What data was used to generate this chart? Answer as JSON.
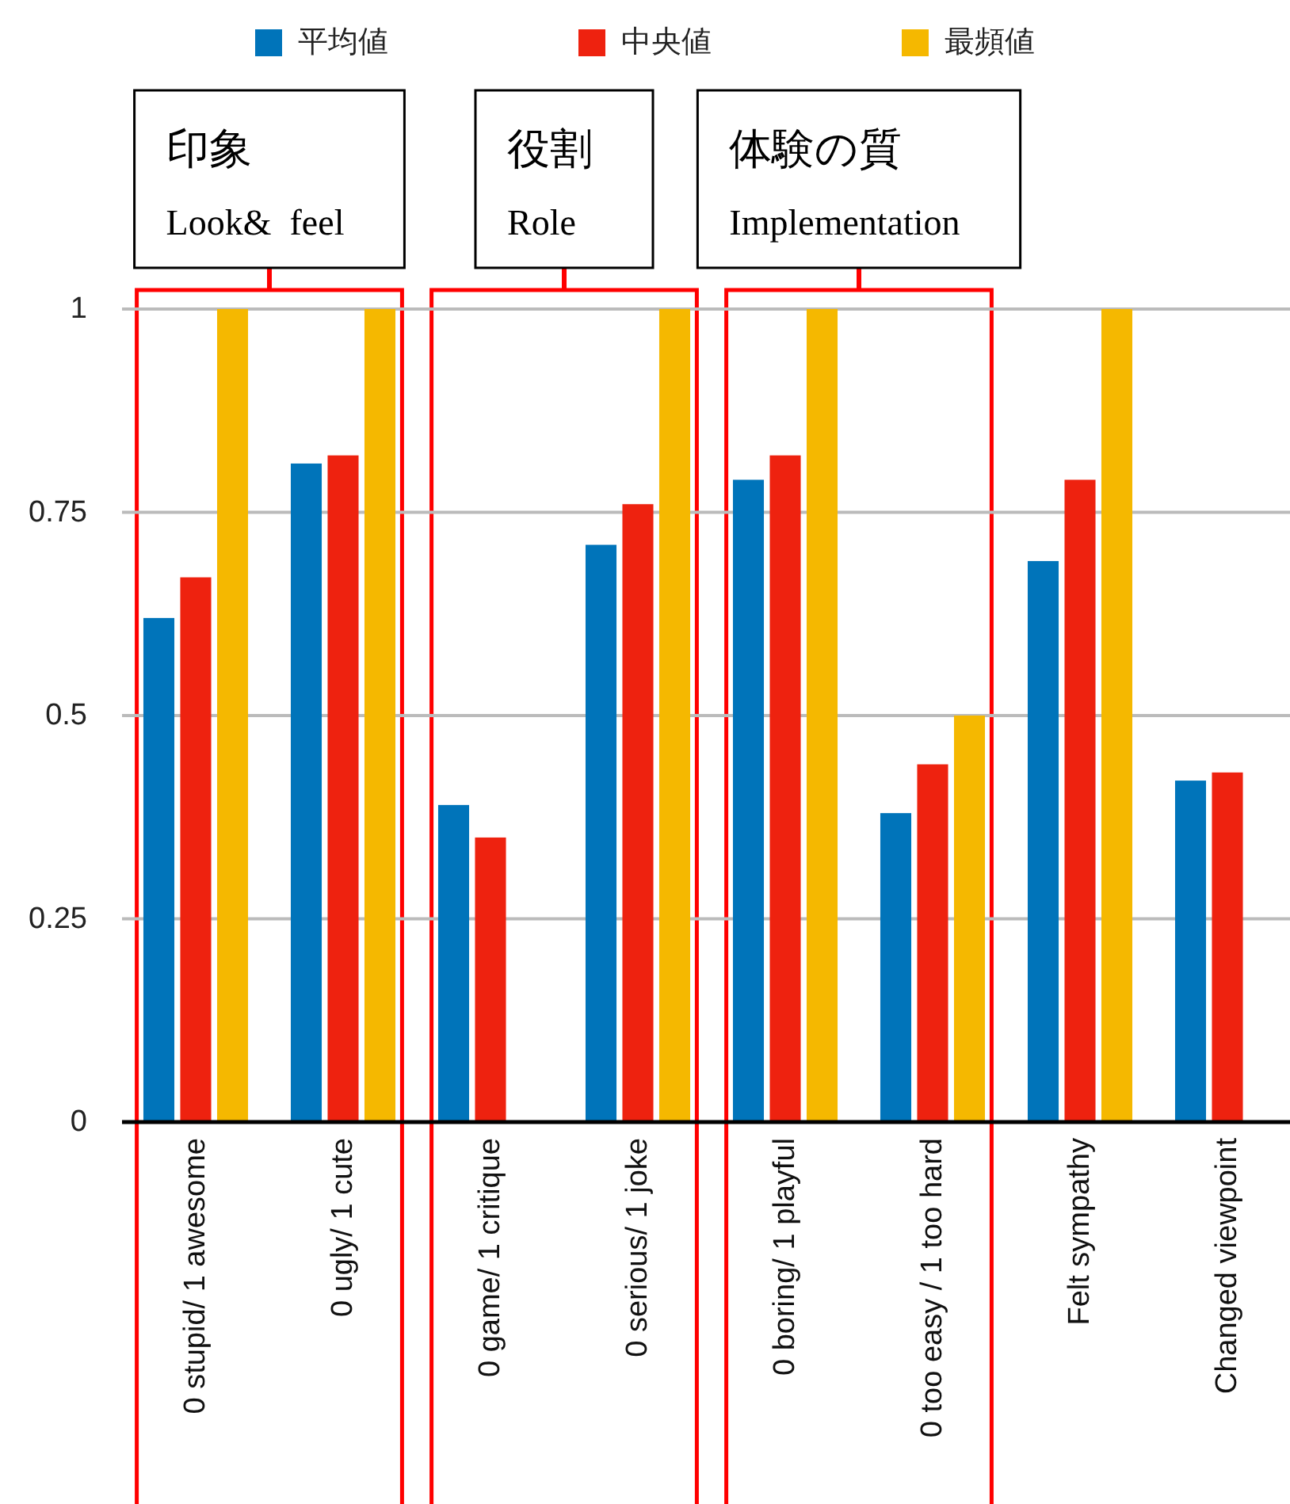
{
  "chart_data": {
    "type": "bar",
    "categories": [
      "0 stupid/ 1 awesome",
      "0 ugly/ 1 cute",
      "0 game/ 1 critique",
      "0 serious/ 1 joke",
      "0 boring/ 1 playful",
      "0 too easy / 1 too hard",
      "Felt sympathy",
      "Changed viewpoint"
    ],
    "series": [
      {
        "name": "平均値",
        "color": "#0074ba",
        "values": [
          0.62,
          0.81,
          0.39,
          0.71,
          0.79,
          0.38,
          0.69,
          0.42
        ]
      },
      {
        "name": "中央値",
        "color": "#ee220f",
        "values": [
          0.67,
          0.82,
          0.35,
          0.76,
          0.82,
          0.44,
          0.79,
          0.43
        ]
      },
      {
        "name": "最頻値",
        "color": "#f5b800",
        "values": [
          1,
          1,
          null,
          1,
          1,
          0.5,
          1,
          null
        ]
      }
    ],
    "ylim": [
      0,
      1
    ],
    "yticks": [
      0,
      0.25,
      0.5,
      0.75,
      1
    ],
    "grid": "y",
    "legend": "top",
    "bands": [
      {
        "axis": "x",
        "from": "0 stupid/ 1 awesome",
        "to": "0 ugly/ 1 cute",
        "label": "印象\nLook&  feel",
        "color": "#ff0000"
      },
      {
        "axis": "x",
        "from": "0 game/ 1 critique",
        "to": "0 serious/ 1 joke",
        "label": "役割\nRole",
        "color": "#ff0000"
      },
      {
        "axis": "x",
        "from": "0 boring/ 1 playful",
        "to": "0 too easy / 1 too hard",
        "label": "体験の質\nImplementation",
        "color": "#ff0000"
      }
    ]
  }
}
